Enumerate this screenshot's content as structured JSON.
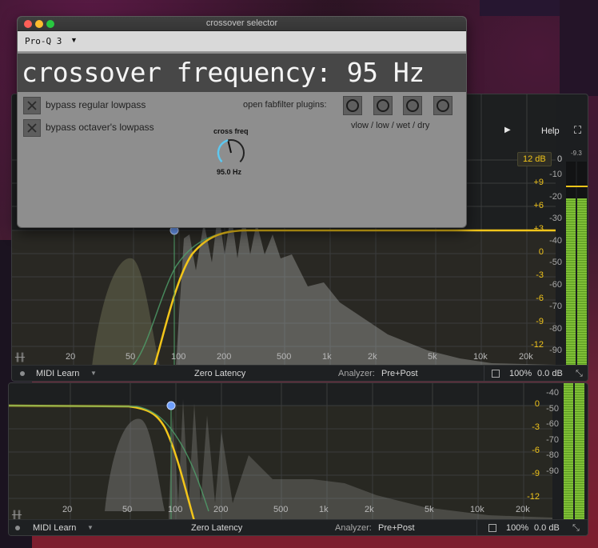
{
  "crossover_window": {
    "title": "crossover selector",
    "plugin_selector": "Pro-Q 3",
    "display_text": "crossover frequency: 95 Hz",
    "toggles": [
      {
        "label": "bypass regular lowpass"
      },
      {
        "label": "bypass octaver's lowpass"
      }
    ],
    "open_plugins_label": "open fabfilter plugins:",
    "plugin_buttons_caption": "vlow / low / wet / dry",
    "knob": {
      "title": "cross freq",
      "value_text": "95.0 Hz",
      "level": 0.45
    },
    "traffic_light_colors": [
      "#fe5f57",
      "#febc2e",
      "#28c840"
    ]
  },
  "eq_top": {
    "header": {
      "help": "Help",
      "output_range": "12 dB",
      "output_zero": "0",
      "meter_peak": "-9.3"
    },
    "gain_ticks": [
      "+9",
      "+6",
      "+3",
      "0",
      "-3",
      "-6",
      "-9",
      "-12"
    ],
    "meter_ticks": [
      "-10",
      "-20",
      "-30",
      "-40",
      "-50",
      "-60",
      "-70",
      "-80",
      "-90"
    ],
    "freq_ticks": [
      "20",
      "50",
      "100",
      "200",
      "500",
      "1k",
      "2k",
      "5k",
      "10k",
      "20k"
    ],
    "meter_level": 0.82
  },
  "eq_bottom": {
    "gain_ticks": [
      "0",
      "-3",
      "-6",
      "-9",
      "-12"
    ],
    "meter_ticks": [
      "-40",
      "-50",
      "-60",
      "-70",
      "-80",
      "-90"
    ],
    "freq_ticks": [
      "20",
      "50",
      "100",
      "200",
      "500",
      "1k",
      "2k",
      "5k",
      "10k",
      "20k"
    ],
    "meter_level": 1.0
  },
  "footer": {
    "midi_learn": "MIDI Learn",
    "latency": "Zero Latency",
    "analyzer_label": "Analyzer:",
    "analyzer_value": "Pre+Post",
    "zoom": "100%",
    "gain": "0.0 dB"
  },
  "colors": {
    "curve": "#f2c51a",
    "node": "#6fa0ff",
    "meter": "#7fbf36"
  }
}
